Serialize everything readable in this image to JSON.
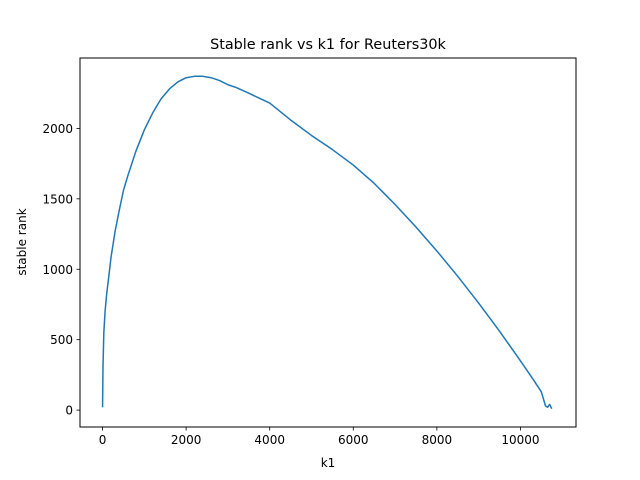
{
  "chart_data": {
    "type": "line",
    "title": "Stable rank vs k1 for Reuters30k",
    "xlabel": "k1",
    "ylabel": "stable rank",
    "xlim": [
      -540,
      11330
    ],
    "ylim": [
      -120,
      2500
    ],
    "xticks": [
      0,
      2000,
      4000,
      6000,
      8000,
      10000
    ],
    "xtick_labels": [
      "0",
      "2000",
      "4000",
      "6000",
      "8000",
      "10000"
    ],
    "yticks": [
      0,
      500,
      1000,
      1500,
      2000
    ],
    "ytick_labels": [
      "0",
      "500",
      "1000",
      "1500",
      "2000"
    ],
    "grid": false,
    "legend": "none",
    "series": [
      {
        "color": "#1f77b4",
        "x": [
          0,
          10,
          30,
          60,
          100,
          150,
          200,
          300,
          400,
          500,
          600,
          800,
          1000,
          1200,
          1400,
          1600,
          1800,
          2000,
          2200,
          2400,
          2600,
          2800,
          3000,
          3200,
          3500,
          4000,
          4500,
          5000,
          5500,
          6000,
          6500,
          7000,
          7500,
          8000,
          8500,
          9000,
          9500,
          10000,
          10300,
          10500,
          10600,
          10650,
          10700,
          10750
        ],
        "y": [
          20,
          300,
          550,
          700,
          830,
          950,
          1080,
          1270,
          1420,
          1560,
          1660,
          1840,
          1990,
          2110,
          2210,
          2280,
          2330,
          2360,
          2370,
          2370,
          2360,
          2340,
          2310,
          2290,
          2250,
          2180,
          2060,
          1950,
          1850,
          1740,
          1610,
          1460,
          1300,
          1130,
          950,
          760,
          560,
          350,
          220,
          130,
          30,
          20,
          40,
          10
        ]
      }
    ]
  }
}
